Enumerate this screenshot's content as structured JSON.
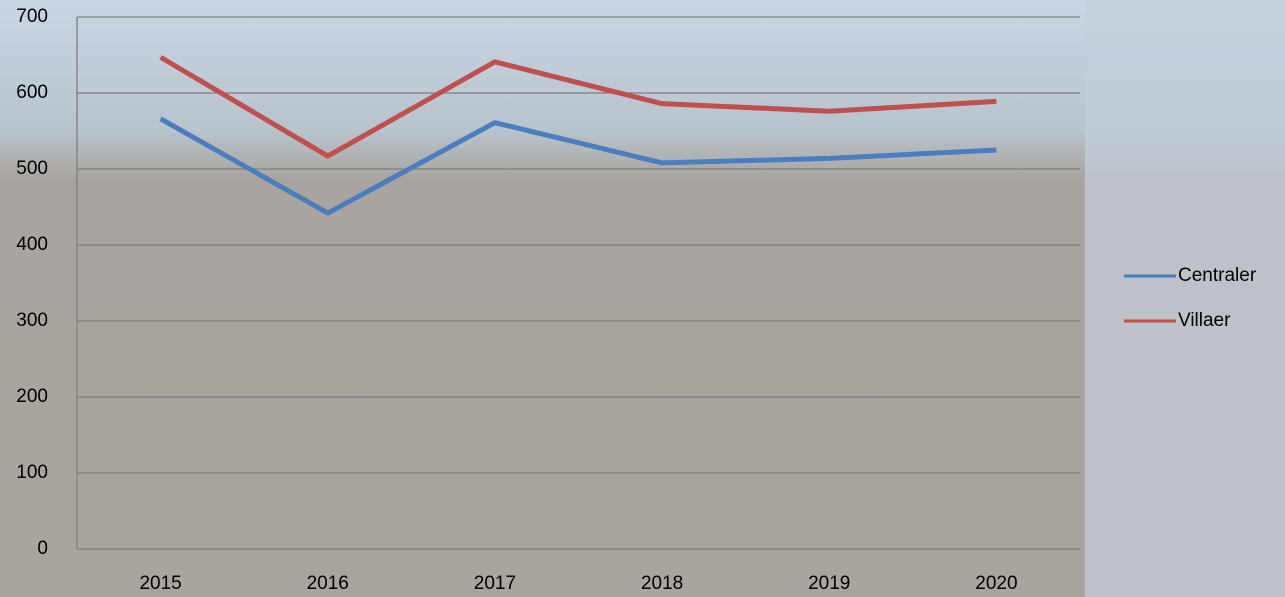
{
  "chart_data": {
    "type": "line",
    "categories": [
      "2015",
      "2016",
      "2017",
      "2018",
      "2019",
      "2020"
    ],
    "series": [
      {
        "name": "Centraler",
        "color": "#4a7ebf",
        "values": [
          566,
          442,
          561,
          508,
          514,
          525
        ]
      },
      {
        "name": "Villaer",
        "color": "#c0504d",
        "values": [
          647,
          517,
          641,
          586,
          576,
          589
        ]
      }
    ],
    "ylim": [
      0,
      700
    ],
    "yticks": [
      0,
      100,
      200,
      300,
      400,
      500,
      600,
      700
    ],
    "grid": true,
    "legend": "right"
  }
}
